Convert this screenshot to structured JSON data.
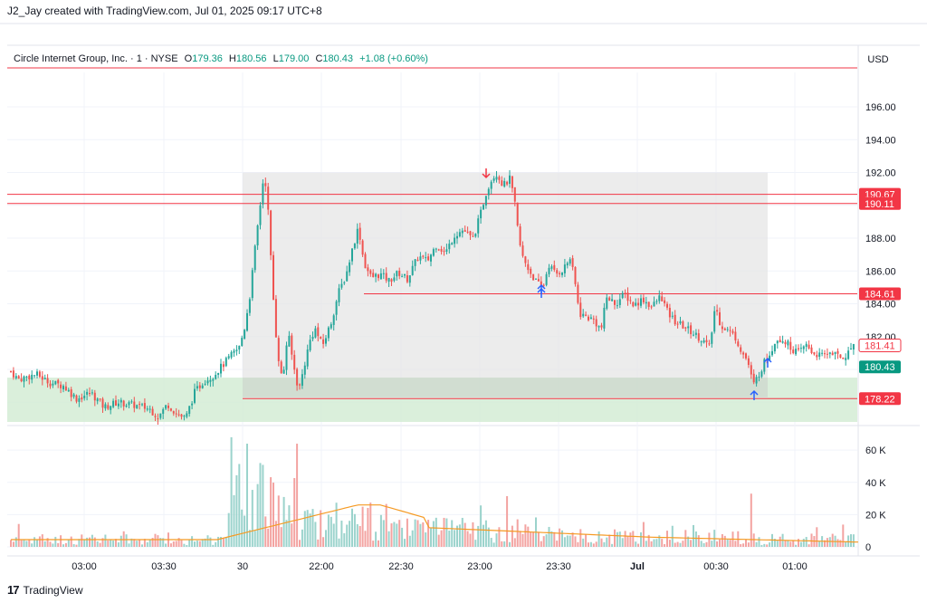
{
  "header": {
    "creator_line": "J2_Jay created with TradingView.com, Jul 01, 2025 09:17 UTC+8"
  },
  "legend": {
    "symbol": "Circle Internet Group, Inc. · 1 · NYSE",
    "open_label": "O",
    "open": "179.36",
    "high_label": "H",
    "high": "180.56",
    "low_label": "L",
    "low": "179.00",
    "close_label": "C",
    "close": "180.43",
    "change": "+1.08 (+0.60%)"
  },
  "currency": "USD",
  "brand": {
    "logo": "17",
    "name": "TradingView"
  },
  "colors": {
    "up": "#26a69a",
    "down": "#ef5350",
    "up_vol": "#9bd3cc",
    "down_vol": "#f3a3a1",
    "hline": "#f23645",
    "ma": "#f59a23",
    "range_box": "#e6e6e6",
    "support_zone": "#d4ecd5",
    "arrow_up": "#2962ff",
    "arrow_down": "#f23645"
  },
  "chart_data": {
    "type": "candlestick",
    "price_axis": {
      "ticks": [
        "196.00",
        "194.00",
        "192.00",
        "188.00",
        "186.00",
        "184.00",
        "182.00",
        "180.00"
      ],
      "range": [
        176.8,
        198.1
      ]
    },
    "volume_axis": {
      "ticks": [
        "60 K",
        "40 K",
        "20 K",
        "0"
      ],
      "range": [
        0,
        73000
      ]
    },
    "time_labels": [
      "03:00",
      "03:30",
      "30",
      "22:00",
      "22:30",
      "23:00",
      "23:30",
      "Jul",
      "00:30",
      "01:00"
    ],
    "price_labels": [
      {
        "value": 190.67,
        "text": "190.67",
        "style": "line"
      },
      {
        "value": 190.11,
        "text": "190.11",
        "style": "line"
      },
      {
        "value": 184.61,
        "text": "184.61",
        "style": "line"
      },
      {
        "value": 181.41,
        "text": "181.41",
        "style": "outline"
      },
      {
        "value": 180.43,
        "text": "180.43",
        "style": "current"
      },
      {
        "value": 178.22,
        "text": "178.22",
        "style": "line"
      }
    ],
    "anchors": [
      [
        0,
        179.9
      ],
      [
        10,
        180.0
      ],
      [
        20,
        179.4
      ],
      [
        40,
        179.7
      ],
      [
        55,
        179.2
      ],
      [
        70,
        179.0
      ],
      [
        85,
        178.2
      ],
      [
        100,
        178.6
      ],
      [
        115,
        177.7
      ],
      [
        130,
        178.0
      ],
      [
        150,
        177.8
      ],
      [
        165,
        177.6
      ],
      [
        175,
        177.1
      ],
      [
        185,
        177.9
      ],
      [
        195,
        177.3
      ],
      [
        205,
        177.0
      ],
      [
        215,
        178.6
      ],
      [
        225,
        179.3
      ],
      [
        235,
        179.6
      ],
      [
        245,
        180.2
      ],
      [
        258,
        181.0
      ],
      [
        264,
        181.3
      ],
      [
        270,
        182.5
      ],
      [
        276,
        184.5
      ],
      [
        282,
        187.5
      ],
      [
        288,
        190.3
      ],
      [
        292,
        192.1
      ],
      [
        296,
        189.8
      ],
      [
        301,
        185.0
      ],
      [
        306,
        181.3
      ],
      [
        312,
        179.2
      ],
      [
        318,
        182.3
      ],
      [
        324,
        180.3
      ],
      [
        330,
        178.7
      ],
      [
        336,
        180.2
      ],
      [
        342,
        181.7
      ],
      [
        348,
        182.5
      ],
      [
        356,
        181.4
      ],
      [
        366,
        182.9
      ],
      [
        374,
        184.7
      ],
      [
        382,
        185.7
      ],
      [
        389,
        187.3
      ],
      [
        396,
        188.7
      ],
      [
        402,
        186.5
      ],
      [
        410,
        185.6
      ],
      [
        420,
        185.8
      ],
      [
        430,
        185.4
      ],
      [
        440,
        185.9
      ],
      [
        450,
        185.5
      ],
      [
        462,
        186.9
      ],
      [
        472,
        186.6
      ],
      [
        482,
        187.6
      ],
      [
        492,
        187.1
      ],
      [
        502,
        188.2
      ],
      [
        512,
        188.5
      ],
      [
        522,
        187.9
      ],
      [
        530,
        189.3
      ],
      [
        536,
        190.6
      ],
      [
        541,
        191.4
      ],
      [
        548,
        192.0
      ],
      [
        556,
        191.2
      ],
      [
        563,
        191.6
      ],
      [
        568,
        190.4
      ],
      [
        572,
        188.5
      ],
      [
        576,
        187.0
      ],
      [
        582,
        186.3
      ],
      [
        588,
        185.7
      ],
      [
        594,
        185.2
      ],
      [
        600,
        185.0
      ],
      [
        606,
        186.4
      ],
      [
        614,
        185.8
      ],
      [
        622,
        186.1
      ],
      [
        630,
        186.8
      ],
      [
        636,
        185.0
      ],
      [
        640,
        183.4
      ],
      [
        648,
        183.2
      ],
      [
        656,
        183.0
      ],
      [
        664,
        182.4
      ],
      [
        670,
        184.4
      ],
      [
        680,
        184.0
      ],
      [
        690,
        184.6
      ],
      [
        700,
        183.9
      ],
      [
        710,
        184.3
      ],
      [
        720,
        183.8
      ],
      [
        730,
        184.5
      ],
      [
        738,
        183.4
      ],
      [
        746,
        182.9
      ],
      [
        756,
        182.6
      ],
      [
        766,
        182.2
      ],
      [
        776,
        181.8
      ],
      [
        784,
        181.3
      ],
      [
        790,
        183.9
      ],
      [
        796,
        182.7
      ],
      [
        804,
        182.4
      ],
      [
        812,
        182.0
      ],
      [
        820,
        181.0
      ],
      [
        826,
        180.5
      ],
      [
        832,
        179.0
      ],
      [
        838,
        179.7
      ],
      [
        844,
        180.4
      ],
      [
        852,
        181.2
      ],
      [
        858,
        181.9
      ],
      [
        866,
        181.8
      ],
      [
        874,
        181.3
      ],
      [
        882,
        181.0
      ],
      [
        890,
        181.5
      ],
      [
        898,
        181.0
      ],
      [
        908,
        180.8
      ],
      [
        918,
        181.1
      ],
      [
        928,
        180.7
      ],
      [
        936,
        180.9
      ],
      [
        943,
        181.6
      ]
    ]
  }
}
